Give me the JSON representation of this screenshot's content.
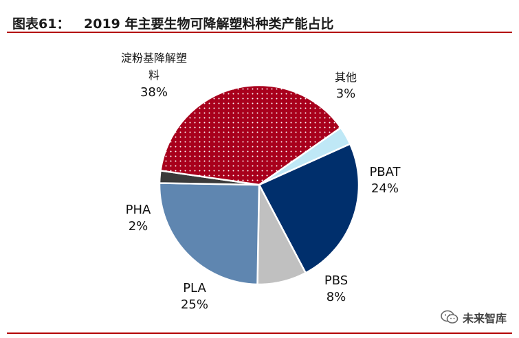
{
  "header": {
    "prefix": "图表61：",
    "title": "2019 年主要生物可降解塑料种类产能占比"
  },
  "watermark": {
    "text": "未来智库",
    "icon": "wechat-icon"
  },
  "colors": {
    "starch": "#a8001c",
    "other": "#bfe8f6",
    "pbat": "#002f6c",
    "pbs": "#c0c0c0",
    "pla": "#5f86b0",
    "pha": "#3a3a3a",
    "rule": "#b30000"
  },
  "chart_data": {
    "type": "pie",
    "start_angle_deg": 55,
    "direction": "clockwise",
    "slices": [
      {
        "name": "其他",
        "value": 3,
        "label": "3%",
        "color": "#bfe8f6",
        "pattern": "none"
      },
      {
        "name": "PBAT",
        "value": 24,
        "label": "24%",
        "color": "#002f6c",
        "pattern": "none"
      },
      {
        "name": "PBS",
        "value": 8,
        "label": "8%",
        "color": "#c0c0c0",
        "pattern": "none"
      },
      {
        "name": "PLA",
        "value": 25,
        "label": "25%",
        "color": "#5f86b0",
        "pattern": "none"
      },
      {
        "name": "PHA",
        "value": 2,
        "label": "2%",
        "color": "#3a3a3a",
        "pattern": "none"
      },
      {
        "name": "淀粉基降解塑料",
        "value": 38,
        "label": "38%",
        "color": "#a8001c",
        "pattern": "dots"
      }
    ],
    "label_lines": [
      {
        "slice": 0,
        "lines": [
          "其他",
          "3%"
        ]
      },
      {
        "slice": 1,
        "lines": [
          "PBAT",
          "24%"
        ]
      },
      {
        "slice": 2,
        "lines": [
          "PBS",
          "8%"
        ]
      },
      {
        "slice": 3,
        "lines": [
          "PLA",
          "25%"
        ]
      },
      {
        "slice": 4,
        "lines": [
          "PHA",
          "2%"
        ]
      },
      {
        "slice": 5,
        "lines": [
          "淀粉基降解塑",
          "料",
          "38%"
        ]
      }
    ]
  }
}
